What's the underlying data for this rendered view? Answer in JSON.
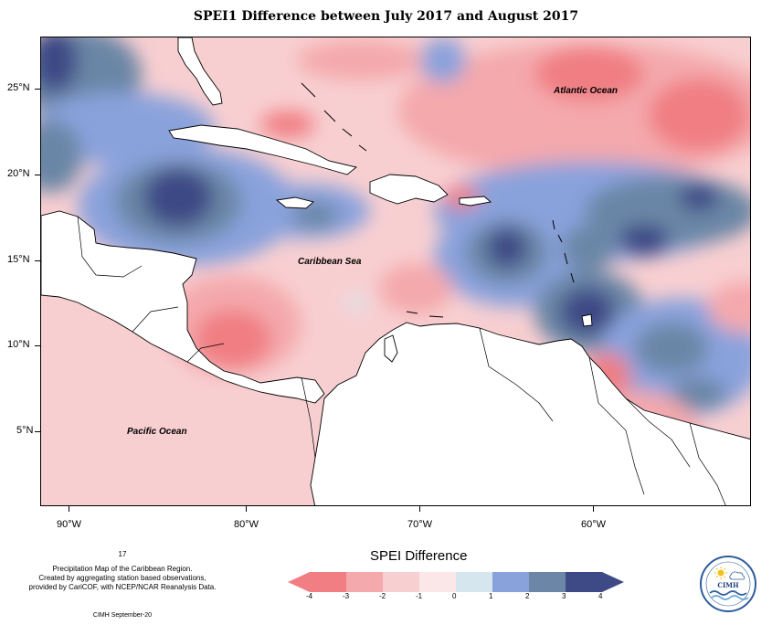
{
  "title": "SPEI1 Difference between July 2017 and August 2017",
  "map": {
    "latitude_labels": [
      "25°N",
      "20°N",
      "15°N",
      "10°N",
      "5°N"
    ],
    "longitude_labels": [
      "90°W",
      "80°W",
      "70°W",
      "60°W"
    ],
    "region_labels": {
      "atlantic": "Atlantic Ocean",
      "caribbean": "Caribbean Sea",
      "pacific": "Pacific Ocean"
    }
  },
  "footnote": {
    "page_number": "17",
    "lines": [
      "Precipitation Map of the Caribbean Region.",
      "Created by aggregating station based observations,",
      "provided by CariCOF, with NCEP/NCAR Reanalysis Data."
    ],
    "credit": "CIMH September-20"
  },
  "legend": {
    "title": "SPEI Difference",
    "tick_labels": [
      "-4",
      "-3",
      "-2",
      "-1",
      "0",
      "1",
      "2",
      "3",
      "4"
    ],
    "colors": [
      "#f07e83",
      "#f4a9ac",
      "#f8cfd1",
      "#fbe7e7",
      "#d6e6ee",
      "#8aa2dc",
      "#6b86a6",
      "#3e4a85"
    ]
  },
  "logo": {
    "text": "CIMH"
  },
  "palette": {
    "very_dry": "#f07e83",
    "dry": "#f4a9ac",
    "slightly_dry": "#f8cfd1",
    "near_normal": "#fbe7e7",
    "neutral": "#d6e6ee",
    "wet": "#8aa2dc",
    "wetter": "#6b86a6",
    "very_wet": "#3e4a85",
    "land": "#ffffff"
  }
}
